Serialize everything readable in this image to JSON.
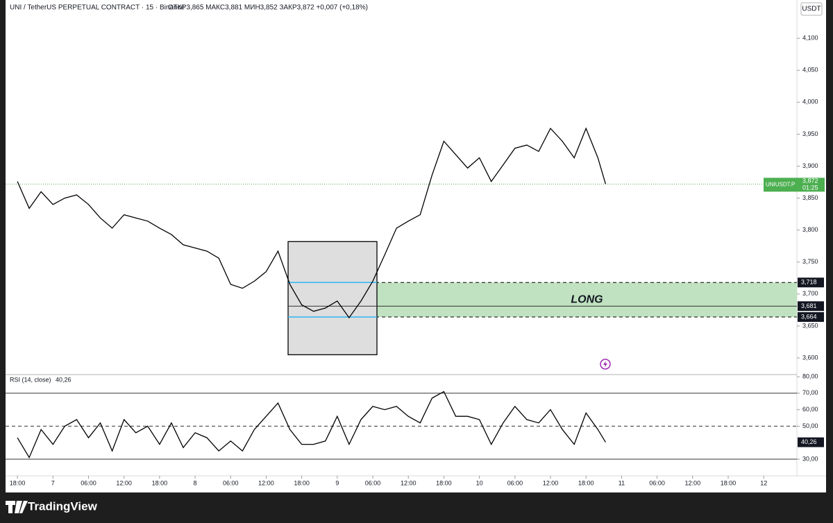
{
  "header": {
    "symbol": "UNI / TetherUS PERPETUAL CONTRACT · 15 · Binance",
    "ohlc": "ОТКР3,865 МАКС3,881 МИН3,852 ЗАКР3,872 +0,007 (+0,18%)",
    "currency": "USDT"
  },
  "footer": {
    "brand": "TradingView"
  },
  "chart_data": [
    {
      "type": "line",
      "x": [
        0,
        2,
        4,
        6,
        8,
        10,
        12,
        14,
        16,
        18,
        20,
        22,
        24,
        26,
        28,
        30,
        32,
        34,
        36,
        38,
        40,
        42,
        44,
        46,
        48,
        50,
        52,
        54,
        56,
        58,
        60,
        62,
        64,
        66,
        68,
        70,
        72,
        74,
        76,
        78,
        80,
        82,
        84,
        86,
        88,
        90,
        92,
        94,
        96,
        98,
        99.3
      ],
      "series": [
        {
          "name": "UNIUSDT.P",
          "color": "#000000",
          "values": [
            3.876,
            3.834,
            3.86,
            3.84,
            3.85,
            3.855,
            3.84,
            3.819,
            3.803,
            3.824,
            3.819,
            3.814,
            3.803,
            3.793,
            3.777,
            3.772,
            3.767,
            3.756,
            3.715,
            3.709,
            3.72,
            3.735,
            3.767,
            3.715,
            3.683,
            3.673,
            3.678,
            3.689,
            3.663,
            3.689,
            3.72,
            3.761,
            3.803,
            3.814,
            3.824,
            3.886,
            3.939,
            3.918,
            3.897,
            3.913,
            3.876,
            3.902,
            3.928,
            3.933,
            3.923,
            3.959,
            3.939,
            3.913,
            3.959,
            3.913,
            3.872
          ]
        }
      ],
      "xlim": [
        -2,
        131.6
      ],
      "xticks": [
        {
          "value": 0,
          "label": "18:00"
        },
        {
          "value": 6,
          "label": "7"
        },
        {
          "value": 12,
          "label": "06:00"
        },
        {
          "value": 18,
          "label": "12:00"
        },
        {
          "value": 24,
          "label": "18:00"
        },
        {
          "value": 30,
          "label": "8"
        },
        {
          "value": 36,
          "label": "06:00"
        },
        {
          "value": 42,
          "label": "12:00"
        },
        {
          "value": 48,
          "label": "18:00"
        },
        {
          "value": 54,
          "label": "9"
        },
        {
          "value": 60,
          "label": "06:00"
        },
        {
          "value": 66,
          "label": "12:00"
        },
        {
          "value": 72,
          "label": "18:00"
        },
        {
          "value": 78,
          "label": "10"
        },
        {
          "value": 84,
          "label": "06:00"
        },
        {
          "value": 90,
          "label": "12:00"
        },
        {
          "value": 96,
          "label": "18:00"
        },
        {
          "value": 102,
          "label": "11"
        },
        {
          "value": 108,
          "label": "06:00"
        },
        {
          "value": 114,
          "label": "12:00"
        },
        {
          "value": 120,
          "label": "18:00"
        },
        {
          "value": 126,
          "label": "12"
        }
      ],
      "ylim": [
        3.574,
        4.136
      ],
      "yticks": [
        {
          "value": 4.1,
          "label": "4,100"
        },
        {
          "value": 4.05,
          "label": "4,050"
        },
        {
          "value": 4.0,
          "label": "4,000"
        },
        {
          "value": 3.95,
          "label": "3,950"
        },
        {
          "value": 3.9,
          "label": "3,900"
        },
        {
          "value": 3.85,
          "label": "3,850"
        },
        {
          "value": 3.8,
          "label": "3,800"
        },
        {
          "value": 3.75,
          "label": "3,750"
        },
        {
          "value": 3.7,
          "label": "3,700"
        },
        {
          "value": 3.65,
          "label": "3,650"
        },
        {
          "value": 3.6,
          "label": "3,600"
        }
      ],
      "last": {
        "value": 3.872,
        "label": "3,872",
        "timer": "01:25",
        "color": "#4caf50"
      },
      "levels": [
        {
          "value": 3.718,
          "label": "3,718",
          "style": "dashed"
        },
        {
          "value": 3.681,
          "label": "3,681",
          "style": "solid"
        },
        {
          "value": 3.664,
          "label": "3,664",
          "style": "dashed"
        }
      ],
      "zone": {
        "from": 3.664,
        "to": 3.718,
        "start": 60.7,
        "label": "LONG",
        "color": "#b9dfb9"
      },
      "box": {
        "x": [
          45.7,
          60.7
        ],
        "y": [
          3.605,
          3.782
        ]
      }
    },
    {
      "type": "line",
      "title": "RSI (14, close)",
      "x": [
        0,
        2,
        4,
        6,
        8,
        10,
        12,
        14,
        16,
        18,
        20,
        22,
        24,
        26,
        28,
        30,
        32,
        34,
        36,
        38,
        40,
        42,
        44,
        46,
        48,
        50,
        52,
        54,
        56,
        58,
        60,
        62,
        64,
        66,
        68,
        70,
        72,
        74,
        76,
        78,
        80,
        82,
        84,
        86,
        88,
        90,
        92,
        94,
        96,
        98,
        99.3
      ],
      "series": [
        {
          "name": "RSI",
          "color": "#000000",
          "values": [
            43,
            31,
            48,
            39,
            50,
            54,
            43,
            52,
            35,
            54,
            46,
            50,
            39,
            52,
            37,
            46,
            43,
            35,
            41,
            35,
            48,
            56,
            64,
            48,
            39,
            39,
            41,
            56,
            39,
            54,
            62,
            60,
            62,
            56,
            52,
            67,
            71,
            56,
            56,
            54,
            39,
            52,
            62,
            54,
            52,
            60,
            48,
            39,
            58,
            48,
            40.26
          ]
        }
      ],
      "current": {
        "value": 40.26,
        "label": "40,26"
      },
      "xlim": [
        -2,
        131.6
      ],
      "ylim": [
        19.9,
        81.3
      ],
      "yticks": [
        {
          "value": 80,
          "label": "80,00"
        },
        {
          "value": 70,
          "label": "70,00"
        },
        {
          "value": 60,
          "label": "60,00"
        },
        {
          "value": 50,
          "label": "50,00"
        },
        {
          "value": 30,
          "label": "30,00"
        }
      ],
      "levels": [
        {
          "value": 70,
          "style": "solid"
        },
        {
          "value": 50,
          "style": "dashed"
        },
        {
          "value": 30,
          "style": "solid"
        }
      ]
    }
  ]
}
